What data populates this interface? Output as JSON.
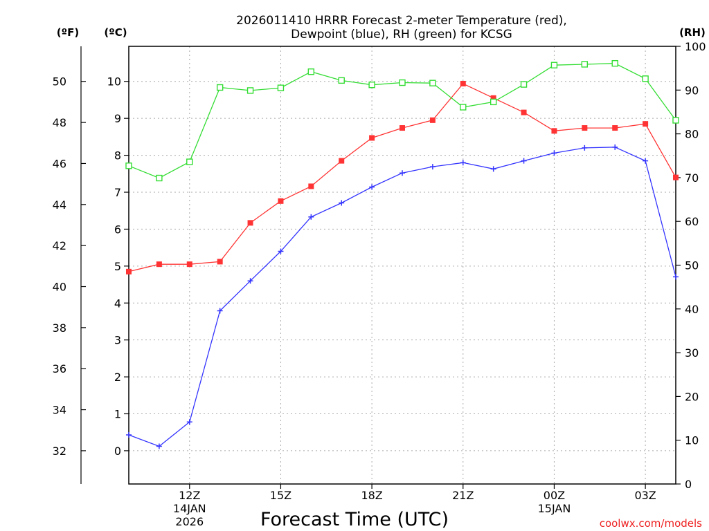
{
  "chart_data": {
    "type": "line",
    "title_line1": "2026011410 HRRR Forecast 2-meter Temperature (red),",
    "title_line2": "Dewpoint (blue), RH (green) for KCSG",
    "xlabel": "Forecast Time (UTC)",
    "credit": "coolwx.com/models",
    "unit_labels": {
      "fahrenheit": "(ºF)",
      "celsius": "(ºC)",
      "rh": "(RH)"
    },
    "x_hours": [
      10,
      11,
      12,
      13,
      14,
      15,
      16,
      17,
      18,
      19,
      20,
      21,
      22,
      23,
      24,
      25,
      26,
      27,
      28
    ],
    "xlim": [
      10,
      28
    ],
    "x_ticks": [
      {
        "hour": 12,
        "label": "12Z",
        "sub1": "14JAN",
        "sub2": "2026"
      },
      {
        "hour": 15,
        "label": "15Z"
      },
      {
        "hour": 18,
        "label": "18Z"
      },
      {
        "hour": 21,
        "label": "21Z"
      },
      {
        "hour": 24,
        "label": "00Z",
        "sub1": "15JAN"
      },
      {
        "hour": 27,
        "label": "03Z"
      }
    ],
    "celsius_axis": {
      "lim": [
        -0.9,
        10.95
      ],
      "ticks": [
        "0",
        "1",
        "2",
        "3",
        "4",
        "5",
        "6",
        "7",
        "8",
        "9",
        "10"
      ]
    },
    "fahrenheit_axis": {
      "ticks": [
        "32",
        "34",
        "36",
        "38",
        "40",
        "42",
        "44",
        "46",
        "48",
        "50"
      ]
    },
    "rh_axis": {
      "lim": [
        0,
        100
      ],
      "ticks": [
        "0",
        "10",
        "20",
        "30",
        "40",
        "50",
        "60",
        "70",
        "80",
        "90",
        "100"
      ]
    },
    "series": [
      {
        "name": "Temperature",
        "unit": "C",
        "color": "#ff3333",
        "marker": "filled-square",
        "values": [
          4.85,
          5.05,
          5.05,
          5.12,
          6.17,
          6.76,
          7.16,
          7.85,
          8.47,
          8.74,
          8.95,
          9.94,
          9.55,
          9.16,
          8.66,
          8.74,
          8.74,
          8.85,
          7.4
        ]
      },
      {
        "name": "Dewpoint",
        "unit": "C",
        "color": "#3333ff",
        "marker": "plus",
        "values": [
          0.43,
          0.12,
          0.78,
          3.79,
          4.6,
          5.4,
          6.33,
          6.71,
          7.14,
          7.52,
          7.69,
          7.8,
          7.63,
          7.85,
          8.06,
          8.2,
          8.22,
          7.85,
          4.71
        ]
      },
      {
        "name": "RH",
        "unit": "%",
        "color": "#33dd33",
        "marker": "open-square",
        "values": [
          72.7,
          69.9,
          73.6,
          90.6,
          89.9,
          90.5,
          94.2,
          92.2,
          91.2,
          91.7,
          91.6,
          86.1,
          87.3,
          91.3,
          95.7,
          95.9,
          96.1,
          92.6,
          83.1
        ]
      }
    ]
  }
}
